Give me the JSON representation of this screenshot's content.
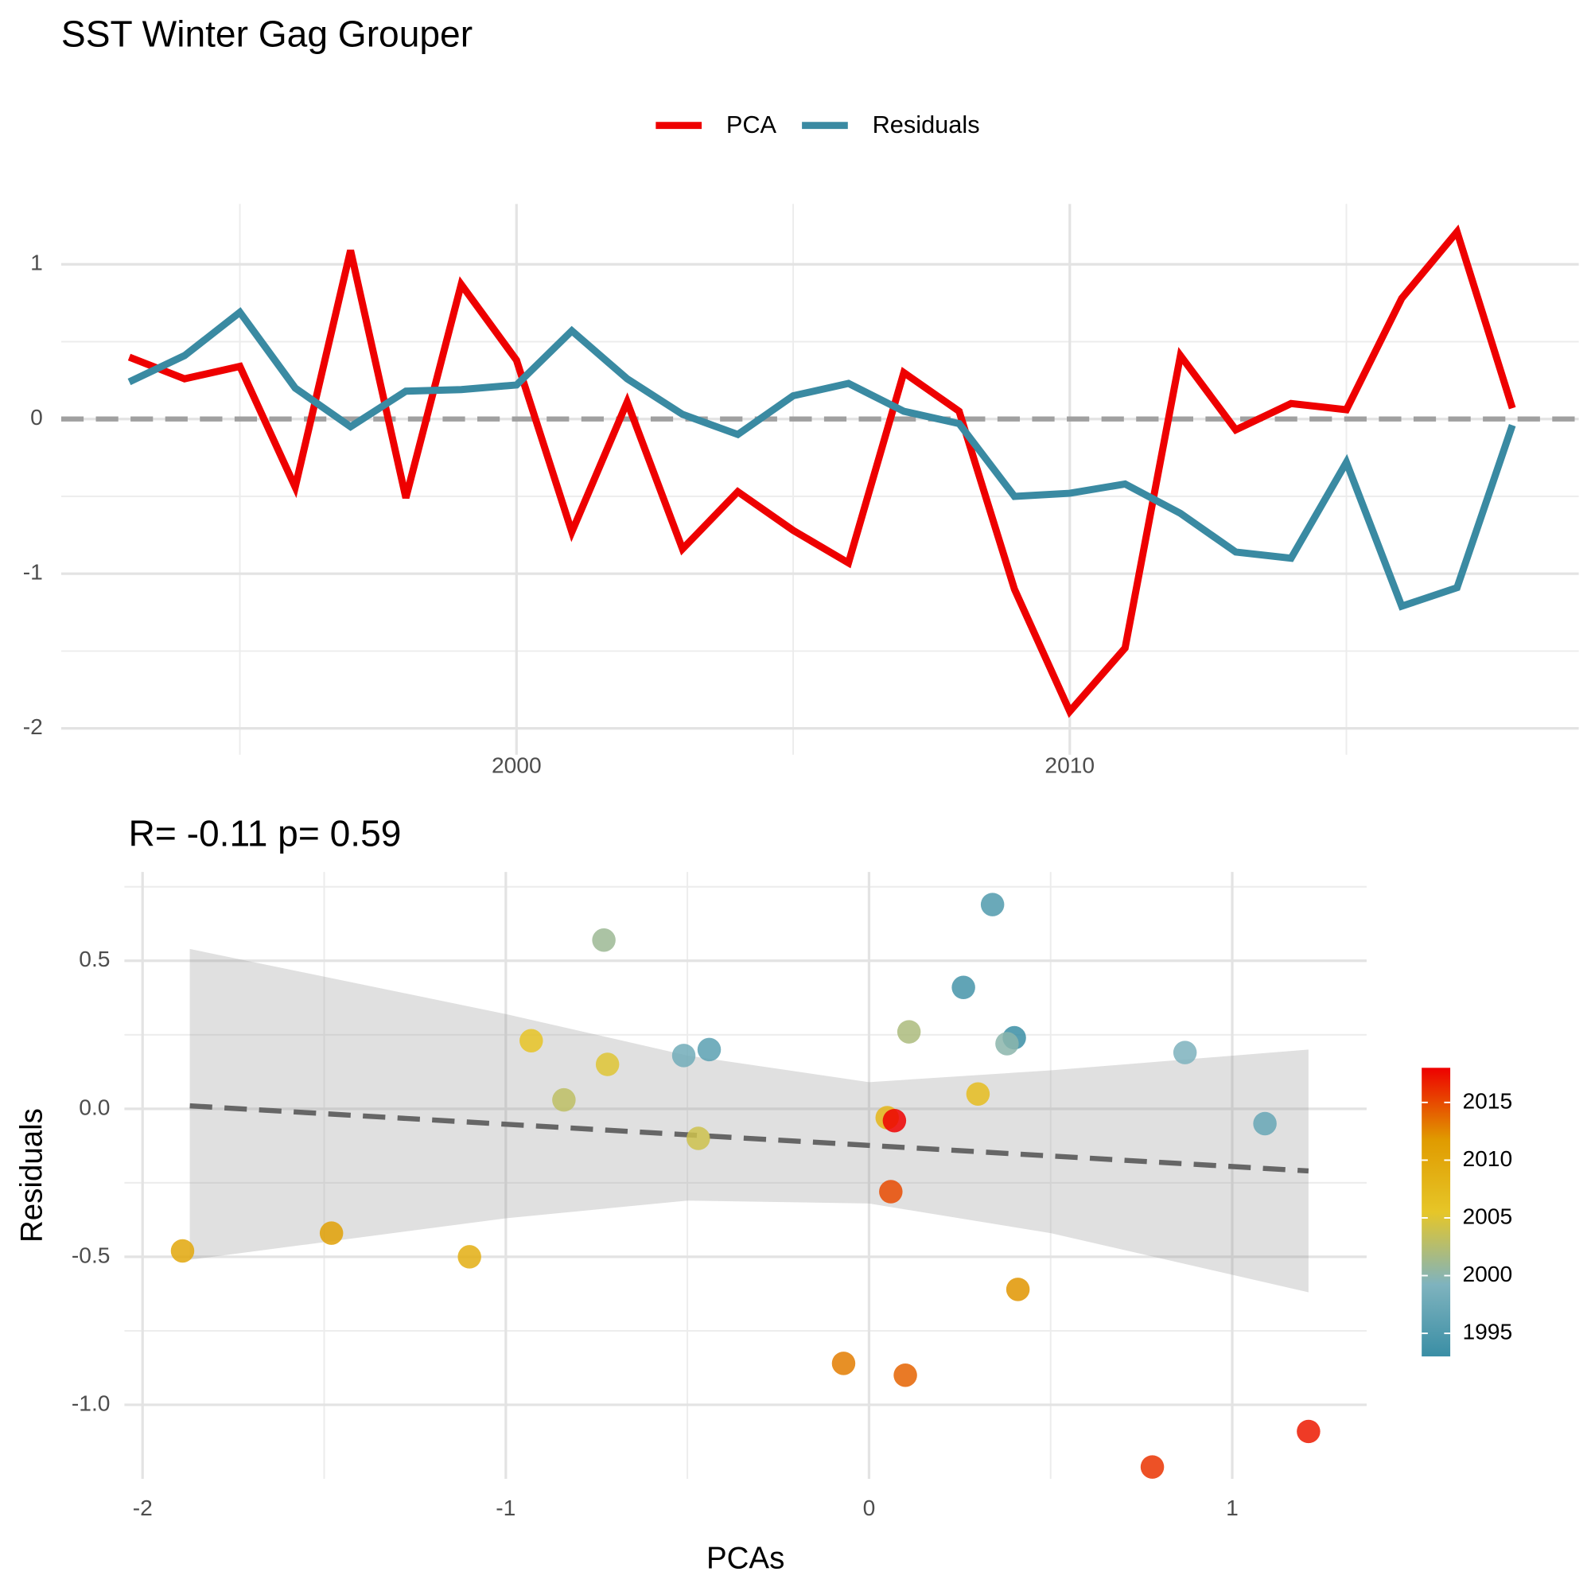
{
  "title": "SST Winter Gag Grouper",
  "chart_data": [
    {
      "type": "line",
      "x": [
        1993,
        1994,
        1995,
        1996,
        1997,
        1998,
        1999,
        2000,
        2001,
        2002,
        2003,
        2004,
        2005,
        2006,
        2007,
        2008,
        2009,
        2010,
        2011,
        2012,
        2013,
        2014,
        2015,
        2016,
        2017,
        2018
      ],
      "series": [
        {
          "name": "PCA",
          "color": "#ee0000",
          "values": [
            0.4,
            0.26,
            0.34,
            -0.44,
            1.09,
            -0.51,
            0.87,
            0.38,
            -0.73,
            0.11,
            -0.84,
            -0.47,
            -0.72,
            -0.93,
            0.3,
            0.05,
            -1.1,
            -1.89,
            -1.48,
            0.41,
            -0.07,
            0.1,
            0.06,
            0.78,
            1.21,
            0.07
          ]
        },
        {
          "name": "Residuals",
          "color": "#3a8aa2",
          "values": [
            0.24,
            0.41,
            0.69,
            0.2,
            -0.05,
            0.18,
            0.19,
            0.22,
            0.57,
            0.26,
            0.03,
            -0.1,
            0.15,
            0.23,
            0.05,
            -0.03,
            -0.5,
            -0.48,
            -0.42,
            -0.61,
            -0.86,
            -0.9,
            -0.28,
            -1.21,
            -1.09,
            -0.04
          ]
        }
      ],
      "xlim": [
        1991.77,
        2019.2
      ],
      "xticks": [
        2000,
        2010
      ],
      "ylim": [
        -2.17,
        1.39
      ],
      "yticks": [
        -2,
        -1,
        0,
        1
      ],
      "hline": 0,
      "grid": true,
      "legend": "top"
    },
    {
      "type": "scatter",
      "subtitle": "R= -0.11  p= 0.59",
      "x_label": "PCAs",
      "y_label": "Residuals",
      "x": [
        0.4,
        0.26,
        0.34,
        -0.44,
        1.09,
        -0.51,
        0.87,
        0.38,
        -0.73,
        0.11,
        -0.84,
        -0.47,
        -0.72,
        -0.93,
        0.3,
        0.05,
        -1.1,
        -1.89,
        -1.48,
        0.41,
        -0.07,
        0.1,
        0.06,
        0.78,
        1.21,
        0.07
      ],
      "y": [
        0.24,
        0.41,
        0.69,
        0.2,
        -0.05,
        0.18,
        0.19,
        0.22,
        0.57,
        0.26,
        0.03,
        -0.1,
        0.15,
        0.23,
        0.05,
        -0.03,
        -0.5,
        -0.48,
        -0.42,
        -0.61,
        -0.86,
        -0.9,
        -0.28,
        -1.21,
        -1.09,
        -0.04
      ],
      "color_values": [
        1993,
        1994,
        1995,
        1996,
        1997,
        1998,
        1999,
        2000,
        2001,
        2002,
        2003,
        2004,
        2005,
        2006,
        2007,
        2008,
        2009,
        2010,
        2011,
        2012,
        2013,
        2014,
        2015,
        2016,
        2017,
        2018
      ],
      "color_scale": {
        "lim": [
          1993,
          2018
        ],
        "colors": [
          "#3a8ea5",
          "#7fb3be",
          "#e6c628",
          "#e09b00",
          "#ee0000"
        ],
        "ticks": [
          1995,
          2000,
          2005,
          2010,
          2015
        ]
      },
      "fit": {
        "x": [
          -1.87,
          1.21
        ],
        "y": [
          0.01,
          -0.21
        ]
      },
      "ribbon": {
        "x": [
          -1.87,
          -1,
          -0.5,
          0,
          0.5,
          1.21
        ],
        "upper": [
          0.54,
          0.32,
          0.18,
          0.09,
          0.13,
          0.2
        ],
        "lower": [
          -0.51,
          -0.37,
          -0.31,
          -0.32,
          -0.42,
          -0.62
        ]
      },
      "xlim": [
        -2.05,
        1.37
      ],
      "xticks": [
        -2,
        -1,
        0,
        1
      ],
      "ylim": [
        -1.25,
        0.8
      ],
      "yticks": [
        {
          "value": -1,
          "label": "-1.0"
        },
        -0.5,
        {
          "value": 0,
          "label": "0.0"
        },
        0.5
      ],
      "grid": true
    }
  ]
}
